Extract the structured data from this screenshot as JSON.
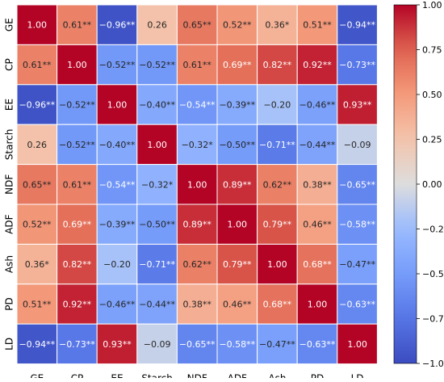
{
  "chart_data": {
    "type": "heatmap",
    "title": "",
    "xlabel": "",
    "ylabel": "",
    "row_labels": [
      "GE",
      "CP",
      "EE",
      "Starch",
      "NDF",
      "ADF",
      "Ash",
      "PD",
      "LD"
    ],
    "col_labels": [
      "GE",
      "CP",
      "EE",
      "Starch",
      "NDF",
      "ADF",
      "Ash",
      "PD",
      "LD"
    ],
    "values": [
      [
        1.0,
        0.61,
        -0.96,
        0.26,
        0.65,
        0.52,
        0.36,
        0.51,
        -0.94
      ],
      [
        0.61,
        1.0,
        -0.52,
        -0.52,
        0.61,
        0.69,
        0.82,
        0.92,
        -0.73
      ],
      [
        -0.96,
        -0.52,
        1.0,
        -0.4,
        -0.54,
        -0.39,
        -0.2,
        -0.46,
        0.93
      ],
      [
        0.26,
        -0.52,
        -0.4,
        1.0,
        -0.32,
        -0.5,
        -0.71,
        -0.44,
        -0.09
      ],
      [
        0.65,
        0.61,
        -0.54,
        -0.32,
        1.0,
        0.89,
        0.62,
        0.38,
        -0.65
      ],
      [
        0.52,
        0.69,
        -0.39,
        -0.5,
        0.89,
        1.0,
        0.79,
        0.46,
        -0.58
      ],
      [
        0.36,
        0.82,
        -0.2,
        -0.71,
        0.62,
        0.79,
        1.0,
        0.68,
        -0.47
      ],
      [
        0.51,
        0.92,
        -0.46,
        -0.44,
        0.38,
        0.46,
        0.68,
        1.0,
        -0.63
      ],
      [
        -0.94,
        -0.73,
        0.93,
        -0.09,
        -0.65,
        -0.58,
        -0.47,
        -0.63,
        1.0
      ]
    ],
    "annotations": [
      [
        "1.00",
        "0.61**",
        "−0.96**",
        "0.26",
        "0.65**",
        "0.52**",
        "0.36*",
        "0.51**",
        "−0.94**"
      ],
      [
        "0.61**",
        "1.00",
        "−0.52**",
        "−0.52**",
        "0.61**",
        "0.69**",
        "0.82**",
        "0.92**",
        "−0.73**"
      ],
      [
        "−0.96**",
        "−0.52**",
        "1.00",
        "−0.40**",
        "−0.54**",
        "−0.39**",
        "−0.20",
        "−0.46**",
        "0.93**"
      ],
      [
        "0.26",
        "−0.52**",
        "−0.40**",
        "1.00",
        "−0.32*",
        "−0.50**",
        "−0.71**",
        "−0.44**",
        "−0.09"
      ],
      [
        "0.65**",
        "0.61**",
        "−0.54**",
        "−0.32*",
        "1.00",
        "0.89**",
        "0.62**",
        "0.38**",
        "−0.65**"
      ],
      [
        "0.52**",
        "0.69**",
        "−0.39**",
        "−0.50**",
        "0.89**",
        "1.00",
        "0.79**",
        "0.46**",
        "−0.58**"
      ],
      [
        "0.36*",
        "0.82**",
        "−0.20",
        "−0.71**",
        "0.62**",
        "0.79**",
        "1.00",
        "0.68**",
        "−0.47**"
      ],
      [
        "0.51**",
        "0.92**",
        "−0.46**",
        "−0.44**",
        "0.38**",
        "0.46**",
        "0.68**",
        "1.00",
        "−0.63**"
      ],
      [
        "−0.94**",
        "−0.73**",
        "0.93**",
        "−0.09",
        "−0.65**",
        "−0.58**",
        "−0.47**",
        "−0.63**",
        "1.00"
      ]
    ],
    "colormap": "coolwarm",
    "vmin": -1.0,
    "vmax": 1.0,
    "colorbar": {
      "ticks": [
        1.0,
        0.75,
        0.5,
        0.25,
        0.0,
        -0.25,
        -0.5,
        -0.75,
        -1.0
      ],
      "tick_labels": [
        "1.00",
        "0.75",
        "0.50",
        "0.25",
        "0.00",
        "−0.25",
        "−0.50",
        "−0.75",
        "−1.00"
      ],
      "placement": "right"
    },
    "colors": {
      "low": "#3b4cc0",
      "mid": "#dddddd",
      "high": "#b40426",
      "cell_border": "#ffffff"
    }
  }
}
